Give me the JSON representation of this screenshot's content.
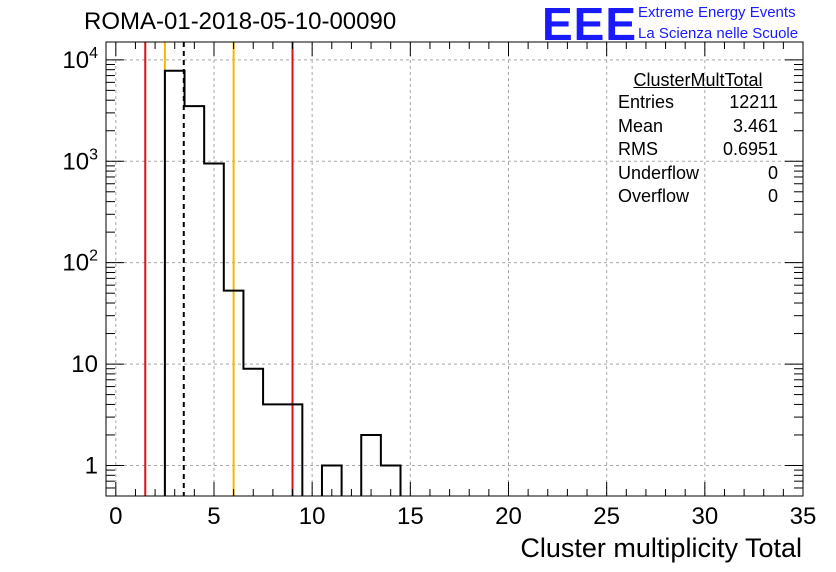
{
  "header": {
    "run_title": "ROMA-01-2018-05-10-00090",
    "logo_text": "EEE",
    "brand_line1": "Extreme Energy Events",
    "brand_line2": "La Scienza nelle Scuole"
  },
  "stats_box": {
    "title": "ClusterMultTotal",
    "rows": [
      {
        "label": "Entries",
        "value": "12211"
      },
      {
        "label": "Mean",
        "value": "3.461"
      },
      {
        "label": "RMS",
        "value": "0.6951"
      },
      {
        "label": "Underflow",
        "value": "0"
      },
      {
        "label": "Overflow",
        "value": "0"
      }
    ]
  },
  "chart_data": {
    "type": "bar",
    "histogram": true,
    "xlabel": "Cluster multiplicity Total",
    "ylabel": "",
    "xlim": [
      -0.5,
      35
    ],
    "ylim": [
      0.5,
      15000
    ],
    "y_scale": "log",
    "grid": true,
    "x_ticks": [
      0,
      5,
      10,
      15,
      20,
      25,
      30,
      35
    ],
    "y_ticks": [
      {
        "value": 1,
        "label": "1"
      },
      {
        "value": 10,
        "label": "10"
      },
      {
        "value": 100,
        "label": "10",
        "sup": "2"
      },
      {
        "value": 1000,
        "label": "10",
        "sup": "3"
      },
      {
        "value": 10000,
        "label": "10",
        "sup": "4"
      }
    ],
    "bin_width": 1,
    "bins": [
      {
        "lo": 2.5,
        "count": 7800
      },
      {
        "lo": 3.5,
        "count": 3500
      },
      {
        "lo": 4.5,
        "count": 950
      },
      {
        "lo": 5.5,
        "count": 53
      },
      {
        "lo": 6.5,
        "count": 9
      },
      {
        "lo": 7.5,
        "count": 4
      },
      {
        "lo": 8.5,
        "count": 4
      },
      {
        "lo": 10.5,
        "count": 1
      },
      {
        "lo": 12.5,
        "count": 2
      },
      {
        "lo": 13.5,
        "count": 1
      }
    ],
    "vlines": [
      {
        "x": 1.5,
        "color": "#dd1111",
        "style": "solid"
      },
      {
        "x": 2.5,
        "color": "#f5b800",
        "style": "solid"
      },
      {
        "x": 3.461,
        "color": "#000000",
        "style": "dashed"
      },
      {
        "x": 6.0,
        "color": "#f5b800",
        "style": "solid"
      },
      {
        "x": 9.0,
        "color": "#dd1111",
        "style": "solid"
      }
    ]
  }
}
